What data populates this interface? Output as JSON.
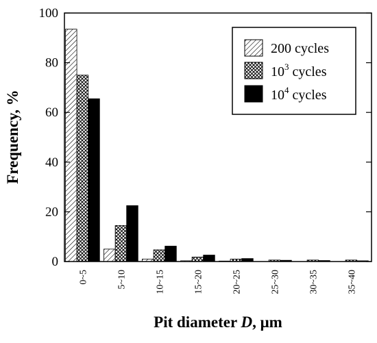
{
  "chart_data": {
    "type": "bar",
    "xlabel": {
      "prefix": "Pit diameter ",
      "var": "D",
      "suffix": ", μm"
    },
    "ylabel": "Frequency,  %",
    "ylim": [
      0,
      100
    ],
    "yticks": [
      0,
      20,
      40,
      60,
      80,
      100
    ],
    "categories": [
      "0~5",
      "5~10",
      "10~15",
      "15~20",
      "20~25",
      "25~30",
      "30~35",
      "35~40"
    ],
    "legend_position": "top-right",
    "grid": false,
    "series": [
      {
        "name": "200 cycles",
        "name_base": "200",
        "name_sup": "",
        "name_rest": " cycles",
        "pattern": "hatch-diagonal",
        "values": [
          93.5,
          5,
          1,
          0.3,
          0.2,
          0,
          0,
          0
        ]
      },
      {
        "name": "10^3 cycles",
        "name_base": "10",
        "name_sup": "3",
        "name_rest": " cycles",
        "pattern": "crosshatch",
        "values": [
          75,
          14.5,
          4.7,
          1.8,
          1.0,
          0.6,
          0.6,
          0.6
        ]
      },
      {
        "name": "10^4 cycles",
        "name_base": "10",
        "name_sup": "4",
        "name_rest": " cycles",
        "pattern": "solid-black",
        "values": [
          65.5,
          22.5,
          6.2,
          2.6,
          1.2,
          0.5,
          0.4,
          0.3
        ]
      }
    ]
  }
}
